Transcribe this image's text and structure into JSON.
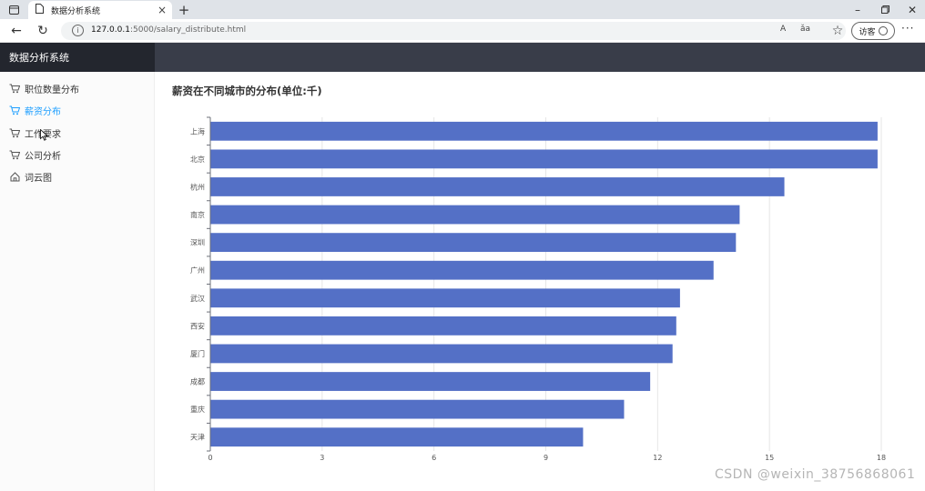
{
  "browser": {
    "tab_title": "数据分析系统",
    "url_host": "127.0.0.1",
    "url_path": ":5000/salary_distribute.html",
    "read_aloud": "A",
    "translate": "ǎa",
    "guest_label": "访客"
  },
  "app": {
    "brand": "数据分析系统",
    "sidebar": [
      {
        "label": "职位数量分布",
        "icon": "cart-icon",
        "active": false
      },
      {
        "label": "薪资分布",
        "icon": "cart-icon",
        "active": true
      },
      {
        "label": "工作要求",
        "icon": "cart-icon",
        "active": false
      },
      {
        "label": "公司分析",
        "icon": "cart-icon",
        "active": false
      },
      {
        "label": "词云图",
        "icon": "home-icon",
        "active": false
      }
    ],
    "page_title": "薪资在不同城市的分布(单位:千)"
  },
  "colors": {
    "bar": "#5470c6",
    "active": "#1e9fff",
    "header": "#393d49",
    "brand_bg": "#23262e"
  },
  "chart_data": {
    "type": "bar",
    "orientation": "horizontal",
    "categories": [
      "上海",
      "北京",
      "杭州",
      "南京",
      "深圳",
      "广州",
      "武汉",
      "西安",
      "厦门",
      "成都",
      "重庆",
      "天津"
    ],
    "values": [
      17.9,
      17.9,
      15.4,
      14.2,
      14.1,
      13.5,
      12.6,
      12.5,
      12.4,
      11.8,
      11.1,
      10.0
    ],
    "xlim": [
      0,
      18
    ],
    "xticks": [
      0,
      3,
      6,
      9,
      12,
      15,
      18
    ],
    "grid": true
  },
  "watermark": "CSDN @weixin_38756868061"
}
